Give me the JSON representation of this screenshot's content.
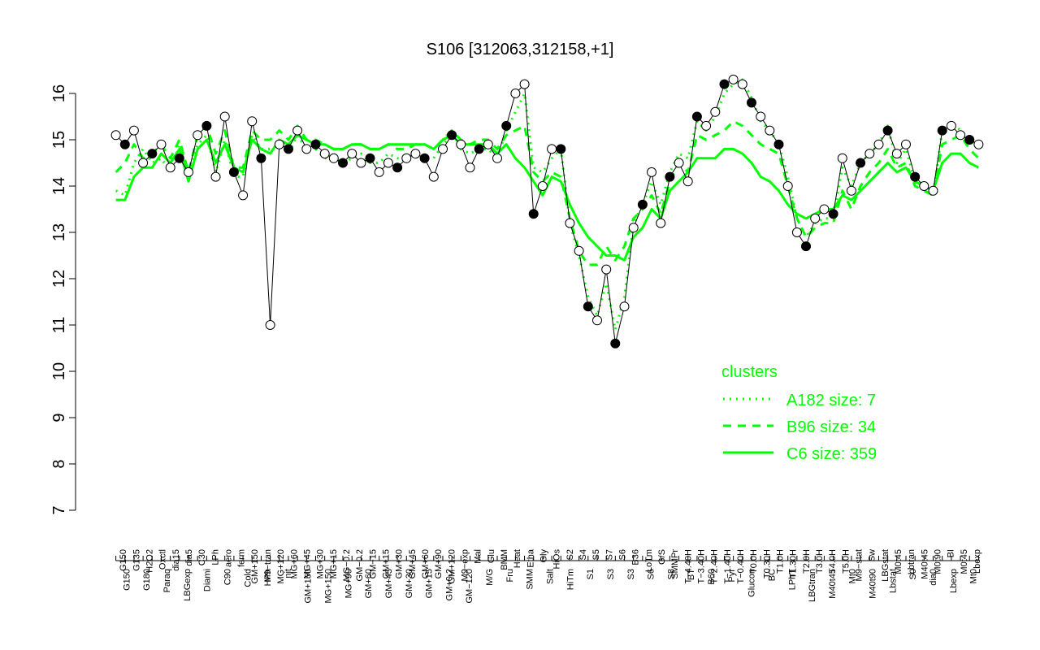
{
  "chart_data": {
    "type": "line",
    "title": "S106 [312063,312158,+1]",
    "xlabel": "",
    "ylabel": "",
    "ylim": [
      7,
      16
    ],
    "yticks": [
      7,
      8,
      9,
      10,
      11,
      12,
      13,
      14,
      15,
      16
    ],
    "grid": false,
    "categories": [
      "G150",
      "G180",
      "G135",
      "Paraq",
      "H2O2",
      "LBGexp",
      "Oxctl",
      "dia15",
      "Diami",
      "dia5",
      "C90",
      "C30",
      "Cold",
      "HPh",
      "LPh",
      "aero",
      "nit",
      "ferm",
      "GM+150",
      "MG+150",
      "M9-tran",
      "MG+90",
      "MG+120",
      "MG+60",
      "MG+45",
      "MG+30",
      "MG+15",
      "MG-0.2",
      "GM-0.2",
      "GM-15",
      "GM+15",
      "GM+30",
      "GM+45",
      "GM+60",
      "GM+90",
      "GM+120",
      "M9-exp",
      "M/G",
      "Mal",
      "Fru",
      "Glu",
      "SMM",
      "BMM",
      "Heat",
      "Etha",
      "Salt",
      "HiTm",
      "Gly",
      "HiOs",
      "S1",
      "S2",
      "S3",
      "S4",
      "S5",
      "S6",
      "S7",
      "S8",
      "BT",
      "B36",
      "B60",
      "LoTm",
      "Pyr",
      "G/S",
      "Glucon",
      "SMMPr",
      "T-4.40H",
      "T-3.40H",
      "T-2.40H",
      "T-1.40H",
      "T-0.40H",
      "T0.0H",
      "T0.30H",
      "T1.0H",
      "T1.30H",
      "T2.0H",
      "T3.0H",
      "T4.0H",
      "T5.0H",
      "M9-stat",
      "BC",
      "Sw",
      "LPhT",
      "LBGstat",
      "LBGtran",
      "M0t45",
      "Lbtran",
      "M40t45",
      "Mt0",
      "M40t90",
      "M0t90",
      "Lbstat",
      "BI",
      "S0",
      "dia0",
      "Lbexp",
      "Mt0b"
    ],
    "x_tick_labels_top": [
      "G150",
      "G135",
      "H2O2",
      "Oxctl",
      "dia15",
      "dia5",
      "C30",
      "LPh",
      "aero",
      "ferm",
      "GM+150",
      "M9−tran",
      "MG+120",
      "MG+60",
      "MG+45",
      "MG+30",
      "MG+15",
      "MG−0.2",
      "GM−0.2",
      "GM−15",
      "GM+15",
      "GM+30",
      "GM+45",
      "GM+60",
      "GM+90",
      "GM+120",
      "M9−exp",
      "Mal",
      "Glu",
      "BMM",
      "Heat",
      "Etha",
      "Gly",
      "HiOs",
      "S2",
      "S4",
      "S5",
      "S7",
      "S6",
      "B36",
      "LoTm",
      "G/S",
      "SMMPr",
      "T−4.40H",
      "T−3.40H",
      "T−2.40H",
      "T−1.40H",
      "T−0.40H",
      "T0.0H",
      "T0.30H",
      "T1.0H",
      "T1.30H",
      "T2.0H",
      "T3.0H",
      "T4.0H",
      "T5.0H",
      "M9−stat",
      "Sw",
      "LBGstat",
      "M0t45",
      "Lbtran",
      "M40t45",
      "M0t90",
      "BI",
      "M0t45",
      "Lbexp"
    ],
    "x_tick_labels_bottom": [
      "G150",
      "G180",
      "Paraq",
      "LBGexp",
      "Diami",
      "C90",
      "Cold",
      "HPh",
      "nit",
      "GM+150",
      "MG+150",
      "MG+90",
      "GM+60",
      "GM+45",
      "GM+30",
      "GM+15",
      "GM+0.2",
      "GM−120",
      "M/G",
      "Fru",
      "SMM",
      "Salt",
      "HiTm",
      "S1",
      "S3",
      "S3",
      "S6",
      "S8",
      "BT",
      "B60",
      "Pyr",
      "Glucon",
      "BC",
      "LPhT",
      "LBGtran",
      "M40t45",
      "Mt0",
      "M40t90",
      "Lbstat",
      "S0",
      "dia0",
      "Lbexp",
      "Mt0"
    ],
    "series": [
      {
        "name": "",
        "role": "expression",
        "color": "#000000",
        "values": [
          15.1,
          14.9,
          15.2,
          14.5,
          14.7,
          14.9,
          14.4,
          14.6,
          14.3,
          15.1,
          15.3,
          14.2,
          15.5,
          14.3,
          13.8,
          15.4,
          14.6,
          11.0,
          14.9,
          14.8,
          15.2,
          14.8,
          14.9,
          14.7,
          14.6,
          14.5,
          14.7,
          14.5,
          14.6,
          14.3,
          14.5,
          14.4,
          14.6,
          14.7,
          14.6,
          14.2,
          14.8,
          15.1,
          14.9,
          14.4,
          14.8,
          14.9,
          14.6,
          15.3,
          16.0,
          16.2,
          13.4,
          14.0,
          14.8,
          14.8,
          13.2,
          12.6,
          11.4,
          11.1,
          12.2,
          10.6,
          11.4,
          13.1,
          13.6,
          14.3,
          13.2,
          14.2,
          14.5,
          14.1,
          15.5,
          15.3,
          15.6,
          16.2,
          16.3,
          16.2,
          15.8,
          15.5,
          15.2,
          14.9,
          14.0,
          13.0,
          12.7,
          13.3,
          13.5,
          13.4,
          14.6,
          13.9,
          14.5,
          14.7,
          14.9,
          15.2,
          14.7,
          14.9,
          14.2,
          14.0,
          13.9,
          15.2,
          15.3,
          15.1,
          15.0,
          14.9
        ]
      },
      {
        "name": "A182 size: 7",
        "role": "cluster",
        "color": "#00ff00",
        "style": "dotted",
        "values": [
          13.9,
          13.8,
          14.5,
          14.8,
          14.5,
          14.6,
          14.3,
          14.9,
          14.3,
          14.9,
          15.1,
          14.3,
          15.0,
          14.2,
          14.2,
          15.1,
          14.8,
          14.8,
          14.9,
          14.7,
          15.1,
          14.8,
          14.8,
          14.6,
          14.6,
          14.5,
          14.6,
          14.7,
          14.5,
          14.5,
          14.7,
          14.6,
          14.6,
          14.7,
          14.6,
          14.6,
          14.9,
          15.1,
          14.8,
          14.7,
          14.8,
          14.8,
          14.6,
          15.2,
          15.6,
          16.0,
          14.4,
          14.3,
          14.6,
          14.8,
          13.2,
          12.5,
          11.6,
          11.2,
          11.9,
          10.9,
          11.6,
          13.2,
          13.6,
          14.1,
          13.6,
          14.3,
          14.7,
          14.6,
          15.4,
          15.2,
          15.5,
          16.0,
          16.2,
          16.3,
          15.9,
          15.4,
          15.2,
          14.9,
          14.2,
          13.3,
          12.9,
          13.2,
          13.3,
          13.3,
          14.4,
          14.0,
          14.5,
          14.7,
          14.9,
          15.3,
          14.5,
          14.8,
          14.1,
          13.9,
          13.8,
          15.2,
          15.4,
          15.2,
          15.0,
          14.8
        ]
      },
      {
        "name": "B96 size: 34",
        "role": "cluster",
        "color": "#00ff00",
        "style": "dashed",
        "values": [
          14.3,
          14.5,
          14.9,
          14.6,
          14.7,
          14.9,
          14.6,
          15.0,
          14.3,
          15.1,
          15.3,
          14.7,
          15.2,
          14.4,
          14.4,
          15.2,
          15.0,
          15.0,
          15.2,
          15.0,
          15.3,
          15.0,
          15.0,
          14.9,
          14.8,
          14.8,
          14.9,
          14.9,
          14.8,
          14.8,
          14.9,
          14.8,
          14.8,
          14.9,
          14.9,
          14.8,
          15.0,
          15.2,
          15.0,
          14.9,
          15.0,
          15.0,
          14.8,
          15.1,
          15.2,
          15.3,
          14.3,
          14.1,
          14.3,
          14.2,
          13.3,
          12.6,
          12.3,
          12.3,
          12.7,
          12.4,
          12.7,
          13.3,
          13.5,
          13.8,
          13.4,
          14.1,
          14.5,
          14.3,
          15.1,
          15.0,
          15.1,
          15.2,
          15.4,
          15.3,
          15.1,
          14.9,
          14.8,
          14.7,
          14.0,
          13.3,
          12.9,
          13.1,
          13.2,
          13.2,
          13.9,
          13.5,
          14.0,
          14.3,
          14.5,
          14.8,
          14.4,
          14.5,
          14.0,
          13.9,
          13.8,
          14.9,
          15.0,
          15.1,
          14.8,
          14.6
        ]
      },
      {
        "name": "C6 size: 359",
        "role": "cluster",
        "color": "#00ff00",
        "style": "solid",
        "values": [
          13.7,
          13.7,
          14.2,
          14.4,
          14.4,
          14.7,
          14.5,
          14.8,
          14.1,
          14.8,
          15.0,
          14.5,
          14.9,
          14.4,
          14.3,
          15.0,
          14.8,
          14.7,
          15.0,
          14.9,
          15.1,
          15.0,
          14.9,
          14.9,
          14.8,
          14.8,
          14.9,
          14.9,
          14.8,
          14.8,
          14.9,
          14.9,
          14.9,
          14.9,
          14.9,
          14.8,
          15.0,
          15.1,
          14.9,
          14.9,
          14.9,
          14.9,
          14.7,
          14.9,
          14.6,
          14.4,
          14.1,
          13.8,
          14.2,
          14.1,
          13.6,
          13.2,
          12.9,
          12.7,
          12.5,
          12.5,
          12.4,
          12.9,
          13.1,
          13.5,
          13.3,
          13.9,
          14.1,
          14.3,
          14.6,
          14.6,
          14.6,
          14.8,
          14.8,
          14.7,
          14.5,
          14.2,
          14.1,
          13.9,
          13.6,
          13.4,
          13.3,
          13.4,
          13.5,
          13.5,
          13.8,
          13.7,
          13.9,
          14.1,
          14.3,
          14.5,
          14.3,
          14.4,
          14.1,
          14.0,
          13.9,
          14.5,
          14.7,
          14.7,
          14.5,
          14.4
        ]
      }
    ],
    "legend": {
      "title": "clusters",
      "position": "bottom-right",
      "color": "#00ff00",
      "entries": [
        "A182 size: 7",
        "B96 size: 34",
        "C6 size: 359"
      ]
    }
  }
}
